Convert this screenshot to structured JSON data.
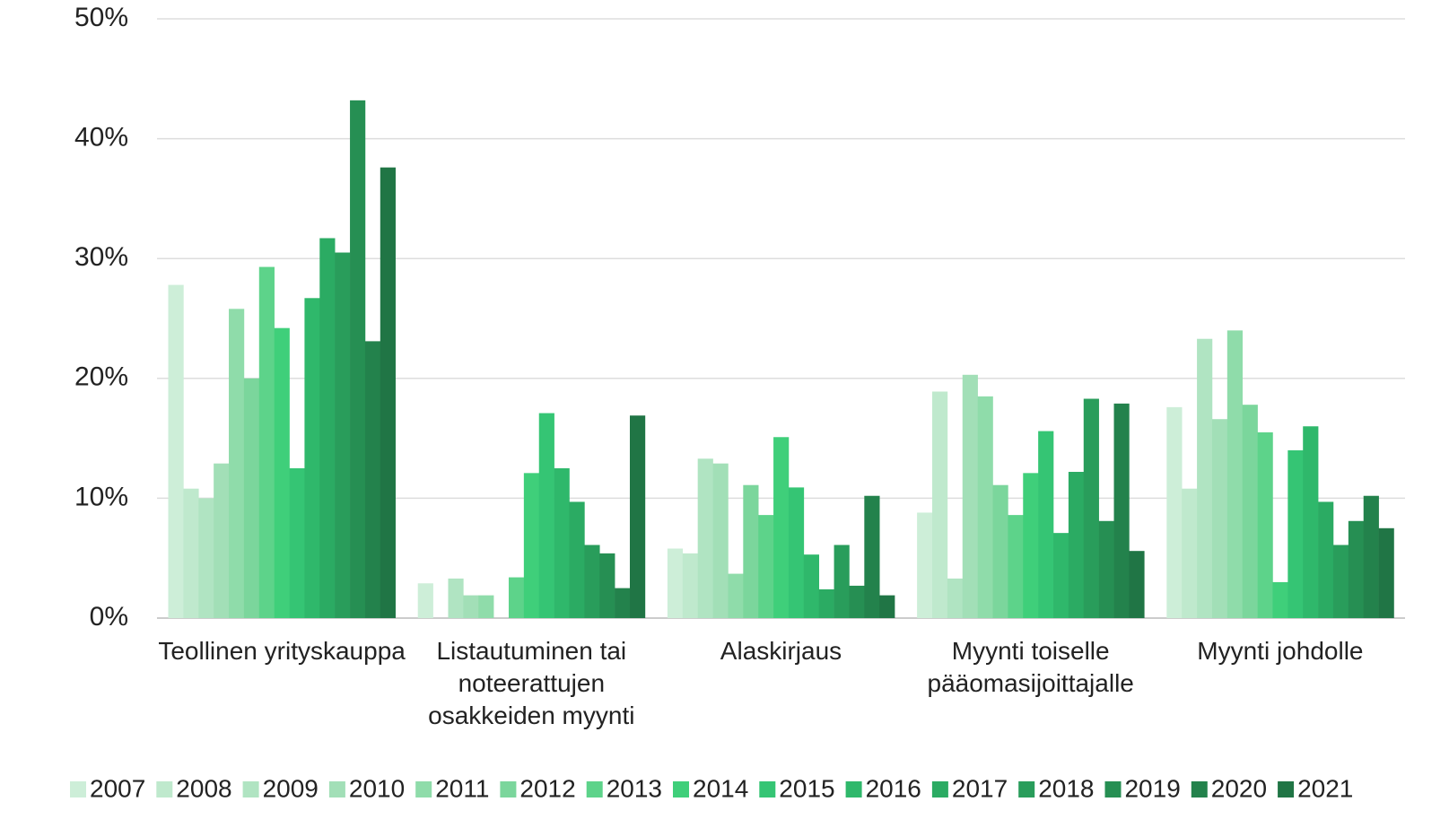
{
  "chart_data": {
    "type": "bar",
    "categories": [
      "Teollinen yrityskauppa",
      "Listautuminen tai noteerattujen osakkeiden myynti",
      "Alaskirjaus",
      "Myynti toiselle pääomasijoittajalle",
      "Myynti johdolle"
    ],
    "series": [
      {
        "name": "2007",
        "color": "#cdeed8",
        "values": [
          27.8,
          2.9,
          5.8,
          8.8,
          17.6
        ]
      },
      {
        "name": "2008",
        "color": "#bfe9cd",
        "values": [
          10.8,
          0,
          5.4,
          18.9,
          10.8
        ]
      },
      {
        "name": "2009",
        "color": "#b0e4c2",
        "values": [
          10.0,
          3.3,
          13.3,
          3.3,
          23.3
        ]
      },
      {
        "name": "2010",
        "color": "#a2dfb7",
        "values": [
          12.9,
          1.9,
          12.9,
          20.3,
          16.6
        ]
      },
      {
        "name": "2011",
        "color": "#8fdcaa",
        "values": [
          25.8,
          1.9,
          3.7,
          18.5,
          24.0
        ]
      },
      {
        "name": "2012",
        "color": "#7bd69c",
        "values": [
          20.0,
          0,
          11.1,
          11.1,
          17.8
        ]
      },
      {
        "name": "2013",
        "color": "#5dd38a",
        "values": [
          29.3,
          3.4,
          8.6,
          8.6,
          15.5
        ]
      },
      {
        "name": "2014",
        "color": "#3fcf7a",
        "values": [
          24.2,
          12.1,
          15.1,
          12.1,
          3.0
        ]
      },
      {
        "name": "2015",
        "color": "#35c574",
        "values": [
          12.5,
          17.1,
          10.9,
          15.6,
          14.0
        ]
      },
      {
        "name": "2016",
        "color": "#2fb86b",
        "values": [
          26.7,
          12.5,
          5.3,
          7.1,
          16.0
        ]
      },
      {
        "name": "2017",
        "color": "#2bab63",
        "values": [
          31.7,
          9.7,
          2.4,
          12.2,
          9.7
        ]
      },
      {
        "name": "2018",
        "color": "#299d5b",
        "values": [
          30.5,
          6.1,
          6.1,
          18.3,
          6.1
        ]
      },
      {
        "name": "2019",
        "color": "#268f53",
        "values": [
          43.2,
          5.4,
          2.7,
          8.1,
          8.1
        ]
      },
      {
        "name": "2020",
        "color": "#23824c",
        "values": [
          23.1,
          2.5,
          10.2,
          17.9,
          10.2
        ]
      },
      {
        "name": "2021",
        "color": "#207545",
        "values": [
          37.6,
          16.9,
          1.9,
          5.6,
          7.5
        ]
      }
    ],
    "ylim": [
      0,
      50
    ],
    "yticks": [
      {
        "value": 0,
        "label": "0%"
      },
      {
        "value": 10,
        "label": "10%"
      },
      {
        "value": 20,
        "label": "20%"
      },
      {
        "value": 30,
        "label": "30%"
      },
      {
        "value": 40,
        "label": "40%"
      },
      {
        "value": 50,
        "label": "50%"
      }
    ],
    "grid": true,
    "legend": "bottom"
  }
}
